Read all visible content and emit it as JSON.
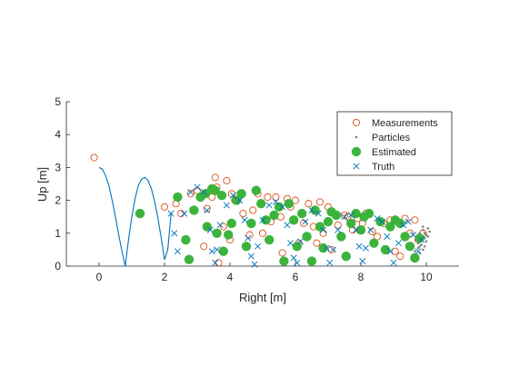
{
  "chart_data": {
    "type": "scatter",
    "title": "",
    "xlabel": "Right [m]",
    "ylabel": "Up [m]",
    "xlim": [
      -1,
      11
    ],
    "ylim": [
      0,
      5
    ],
    "xticks": [
      0,
      2,
      4,
      6,
      8,
      10
    ],
    "yticks": [
      0,
      1,
      2,
      3,
      4,
      5
    ],
    "grid": false,
    "legend_position": "top-right",
    "colors": {
      "truth": "#0072BD",
      "measurements": "#D95319",
      "estimated": "#3CB43C",
      "particles": "#808080",
      "axes": "#262626"
    },
    "series": [
      {
        "name": "Measurements",
        "marker": "open-circle",
        "x": [
          -0.15,
          2.0,
          2.35,
          2.5,
          2.8,
          3.0,
          3.2,
          3.3,
          3.45,
          3.55,
          3.6,
          3.65,
          3.8,
          3.9,
          4.0,
          4.05,
          4.15,
          4.4,
          4.6,
          4.7,
          4.85,
          5.0,
          5.15,
          5.25,
          5.4,
          5.55,
          5.6,
          5.75,
          5.85,
          6.0,
          6.1,
          6.25,
          6.4,
          6.55,
          6.65,
          6.75,
          6.85,
          7.0,
          7.1,
          7.3,
          7.5,
          7.6,
          7.75,
          7.9,
          8.05,
          8.15,
          8.35,
          8.5,
          8.7,
          8.9,
          9.05,
          9.2,
          9.35,
          9.5,
          9.65,
          9.75,
          9.9
        ],
        "y": [
          3.3,
          1.8,
          1.9,
          1.6,
          2.2,
          2.3,
          0.6,
          1.75,
          2.1,
          2.7,
          2.4,
          0.1,
          1.2,
          2.6,
          0.8,
          2.2,
          2.0,
          1.6,
          0.95,
          1.7,
          2.2,
          1.0,
          2.1,
          1.35,
          2.1,
          1.5,
          0.4,
          2.05,
          1.8,
          2.0,
          0.7,
          1.3,
          1.9,
          1.2,
          0.7,
          1.95,
          1.0,
          1.8,
          0.5,
          1.25,
          1.55,
          1.5,
          1.1,
          1.45,
          1.3,
          1.6,
          1.05,
          0.9,
          1.3,
          1.4,
          0.45,
          0.3,
          1.45,
          1.0,
          1.4,
          0.8,
          1.0
        ]
      },
      {
        "name": "Particles",
        "marker": "dot",
        "x": [
          9.8,
          9.85,
          9.9,
          9.95,
          10.0,
          10.05,
          9.75,
          9.7,
          9.85,
          9.95,
          10.1,
          9.8,
          9.9,
          10.0,
          9.65,
          9.75,
          9.9,
          10.05,
          9.8,
          9.95
        ],
        "y": [
          0.6,
          0.9,
          1.1,
          1.0,
          0.75,
          1.15,
          0.55,
          0.8,
          0.65,
          0.85,
          1.05,
          1.0,
          1.2,
          0.95,
          0.45,
          0.7,
          0.5,
          0.9,
          0.4,
          0.6
        ]
      },
      {
        "name": "Estimated",
        "marker": "filled-circle",
        "x": [
          1.25,
          2.4,
          2.65,
          2.75,
          2.9,
          3.1,
          3.25,
          3.3,
          3.45,
          3.55,
          3.6,
          3.75,
          3.8,
          3.95,
          4.05,
          4.2,
          4.35,
          4.5,
          4.65,
          4.8,
          4.95,
          5.1,
          5.2,
          5.35,
          5.5,
          5.65,
          5.8,
          5.95,
          6.05,
          6.2,
          6.35,
          6.5,
          6.6,
          6.75,
          6.85,
          7.0,
          7.1,
          7.25,
          7.4,
          7.55,
          7.7,
          7.85,
          8.0,
          8.1,
          8.25,
          8.4,
          8.6,
          8.75,
          8.9,
          9.05,
          9.2,
          9.35,
          9.5,
          9.65,
          9.8
        ],
        "y": [
          1.6,
          2.1,
          0.8,
          0.2,
          1.7,
          2.1,
          2.2,
          1.2,
          2.35,
          2.3,
          1.0,
          2.15,
          0.45,
          0.95,
          1.3,
          2.0,
          2.2,
          0.6,
          1.3,
          2.3,
          1.9,
          1.4,
          0.8,
          1.55,
          1.8,
          0.15,
          1.9,
          1.4,
          0.6,
          1.6,
          0.9,
          0.15,
          1.7,
          1.2,
          0.55,
          1.35,
          1.65,
          1.55,
          0.9,
          0.3,
          1.3,
          1.6,
          1.1,
          1.5,
          1.6,
          0.7,
          1.35,
          0.5,
          1.2,
          1.4,
          1.3,
          0.9,
          0.6,
          0.25,
          0.85
        ]
      },
      {
        "name": "Truth",
        "marker": "x-cross",
        "x": [
          2.2,
          2.3,
          2.4,
          2.6,
          2.8,
          3.0,
          3.2,
          3.3,
          3.4,
          3.45,
          3.55,
          3.6,
          3.7,
          3.9,
          4.1,
          4.3,
          4.45,
          4.55,
          4.65,
          4.75,
          4.85,
          5.0,
          5.2,
          5.4,
          5.6,
          5.75,
          5.85,
          5.95,
          6.05,
          6.15,
          6.3,
          6.5,
          6.7,
          6.85,
          6.95,
          7.05,
          7.15,
          7.3,
          7.5,
          7.7,
          7.85,
          7.95,
          8.05,
          8.15,
          8.3,
          8.5,
          8.65,
          8.8,
          8.9,
          9.0,
          9.15,
          9.3,
          9.45,
          9.6,
          9.75,
          9.85
        ],
        "y": [
          1.6,
          1.0,
          0.45,
          1.6,
          2.25,
          2.4,
          2.25,
          1.7,
          1.1,
          0.45,
          0.1,
          0.5,
          1.25,
          1.85,
          2.15,
          2.0,
          1.4,
          0.85,
          0.3,
          0.05,
          0.6,
          1.4,
          1.85,
          1.95,
          1.8,
          1.25,
          0.7,
          0.25,
          0.1,
          0.75,
          1.35,
          1.7,
          1.6,
          1.1,
          0.55,
          0.1,
          0.5,
          1.1,
          1.5,
          1.55,
          1.1,
          0.6,
          0.15,
          0.55,
          1.1,
          1.45,
          1.35,
          0.9,
          0.45,
          0.1,
          0.7,
          1.25,
          1.35,
          0.95,
          0.45,
          0.8
        ]
      }
    ],
    "trajectory": {
      "style": "line",
      "color": "#0072BD",
      "x": [
        0.0,
        0.1,
        0.2,
        0.3,
        0.4,
        0.5,
        0.6,
        0.7,
        0.8,
        0.9,
        1.0,
        1.1,
        1.2,
        1.3,
        1.4,
        1.5,
        1.6,
        1.7,
        1.8,
        1.9,
        2.0,
        2.1,
        2.2
      ],
      "y": [
        3.0,
        2.95,
        2.75,
        2.45,
        2.0,
        1.5,
        0.95,
        0.45,
        0.0,
        0.8,
        1.5,
        2.05,
        2.45,
        2.65,
        2.7,
        2.6,
        2.35,
        1.95,
        1.45,
        0.85,
        0.2,
        0.5,
        1.6
      ]
    }
  }
}
